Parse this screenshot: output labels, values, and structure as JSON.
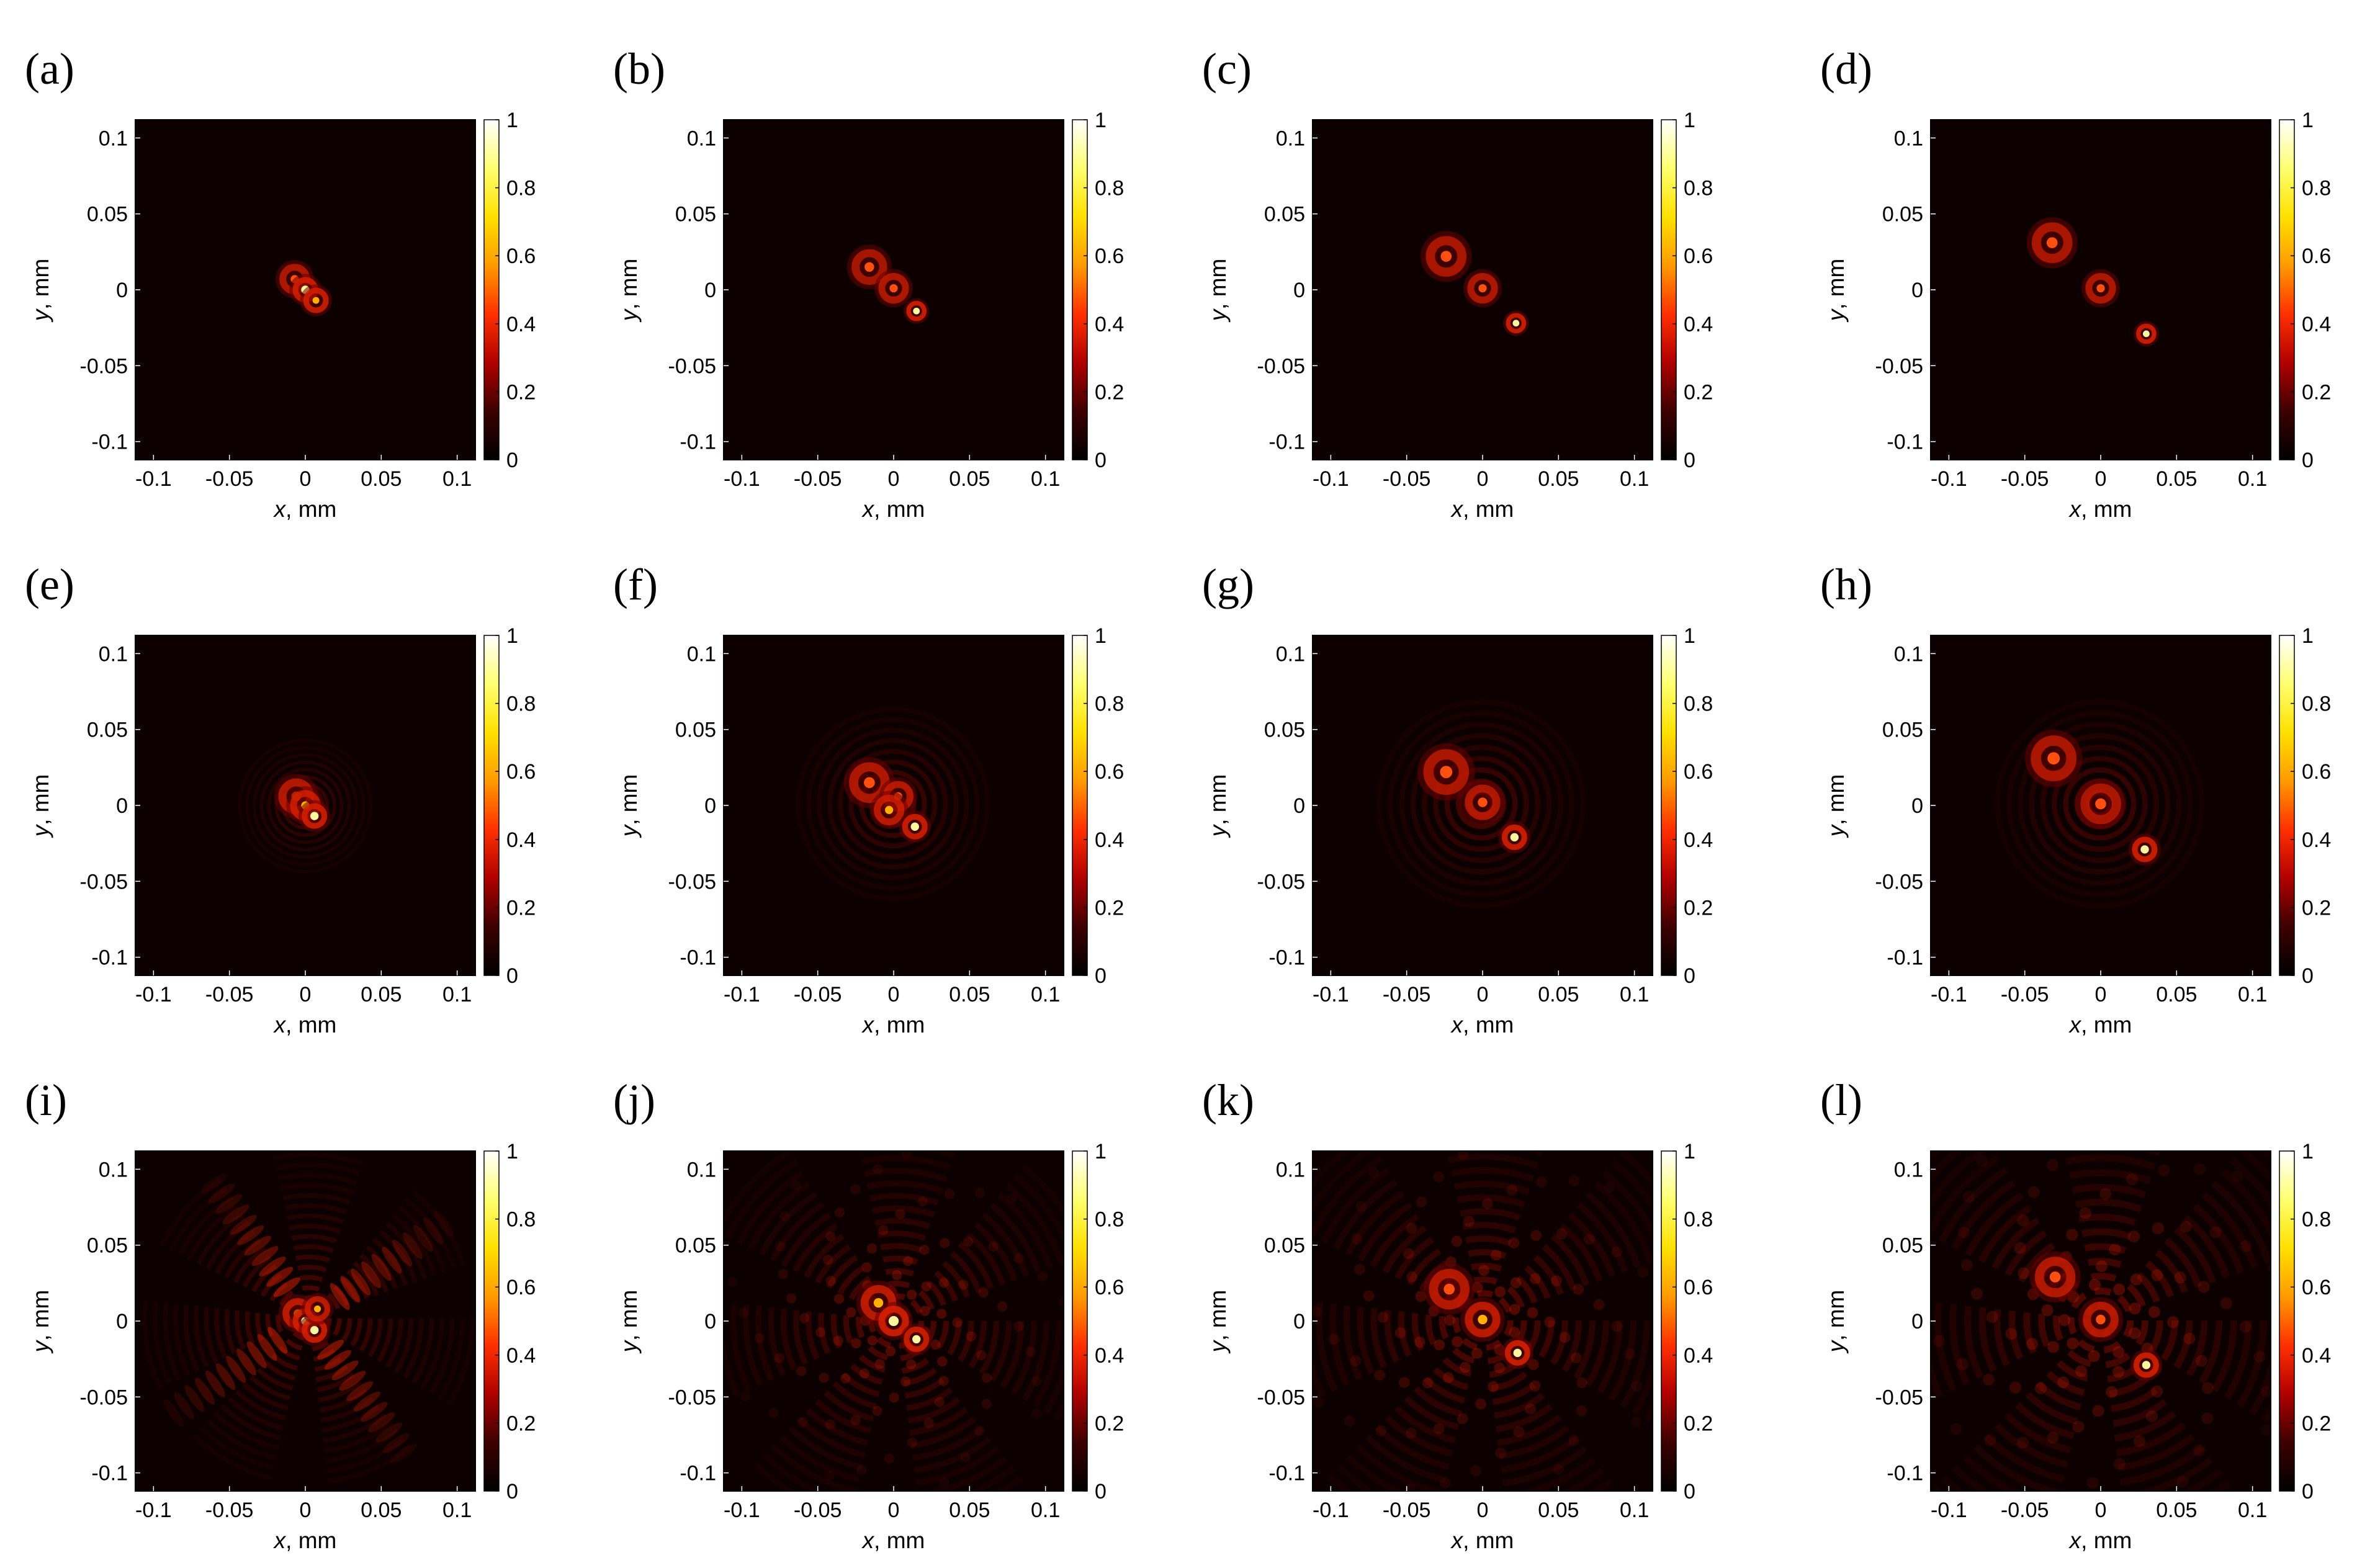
{
  "colors": {
    "background": "#ffffff",
    "plot_background": "#0c0000",
    "colormap": [
      "#000000",
      "#3d0000",
      "#b00000",
      "#ff3000",
      "#ff9a00",
      "#ffe000",
      "#ffff70",
      "#ffffff"
    ]
  },
  "chart_data": [
    {
      "type": "heatmap",
      "panel_label": "(a)",
      "xlabel": "x, mm",
      "ylabel": "y, mm",
      "xlim": [
        -0.112,
        0.112
      ],
      "ylim": [
        -0.112,
        0.112
      ],
      "xticks": [
        "-0.1",
        "-0.05",
        "0",
        "0.05",
        "0.1"
      ],
      "yticks": [
        "0.1",
        "0.05",
        "0",
        "-0.05",
        "-0.1"
      ],
      "colorbar_ticks": [
        "1",
        "0.8",
        "0.6",
        "0.4",
        "0.2",
        "0"
      ],
      "spots": [
        {
          "x": -0.007,
          "y": 0.007,
          "intensity": 0.55,
          "ring": 0.006
        },
        {
          "x": 0.0,
          "y": 0.0,
          "intensity": 0.9,
          "ring": 0.005
        },
        {
          "x": 0.007,
          "y": -0.007,
          "intensity": 0.85,
          "ring": 0.005
        }
      ],
      "spread": 0,
      "interference": "none"
    },
    {
      "type": "heatmap",
      "panel_label": "(b)",
      "xlabel": "x, mm",
      "ylabel": "y, mm",
      "xlim": [
        -0.112,
        0.112
      ],
      "ylim": [
        -0.112,
        0.112
      ],
      "xticks": [
        "-0.1",
        "-0.05",
        "0",
        "0.05",
        "0.1"
      ],
      "yticks": [
        "0.1",
        "0.05",
        "0",
        "-0.05",
        "-0.1"
      ],
      "colorbar_ticks": [
        "1",
        "0.8",
        "0.6",
        "0.4",
        "0.2",
        "0"
      ],
      "spots": [
        {
          "x": -0.016,
          "y": 0.015,
          "intensity": 0.45,
          "ring": 0.007
        },
        {
          "x": 0.0,
          "y": 0.001,
          "intensity": 0.55,
          "ring": 0.006
        },
        {
          "x": 0.015,
          "y": -0.014,
          "intensity": 0.95,
          "ring": 0.004
        }
      ],
      "spread": 0,
      "interference": "none"
    },
    {
      "type": "heatmap",
      "panel_label": "(c)",
      "xlabel": "x, mm",
      "ylabel": "y, mm",
      "xlim": [
        -0.112,
        0.112
      ],
      "ylim": [
        -0.112,
        0.112
      ],
      "xticks": [
        "-0.1",
        "-0.05",
        "0",
        "0.05",
        "0.1"
      ],
      "yticks": [
        "0.1",
        "0.05",
        "0",
        "-0.05",
        "-0.1"
      ],
      "colorbar_ticks": [
        "1",
        "0.8",
        "0.6",
        "0.4",
        "0.2",
        "0"
      ],
      "spots": [
        {
          "x": -0.024,
          "y": 0.022,
          "intensity": 0.5,
          "ring": 0.008
        },
        {
          "x": 0.0,
          "y": 0.001,
          "intensity": 0.55,
          "ring": 0.006
        },
        {
          "x": 0.022,
          "y": -0.022,
          "intensity": 0.95,
          "ring": 0.004
        }
      ],
      "spread": 0,
      "interference": "none"
    },
    {
      "type": "heatmap",
      "panel_label": "(d)",
      "xlabel": "x, mm",
      "ylabel": "y, mm",
      "xlim": [
        -0.112,
        0.112
      ],
      "ylim": [
        -0.112,
        0.112
      ],
      "xticks": [
        "-0.1",
        "-0.05",
        "0",
        "0.05",
        "0.1"
      ],
      "yticks": [
        "0.1",
        "0.05",
        "0",
        "-0.05",
        "-0.1"
      ],
      "colorbar_ticks": [
        "1",
        "0.8",
        "0.6",
        "0.4",
        "0.2",
        "0"
      ],
      "spots": [
        {
          "x": -0.032,
          "y": 0.031,
          "intensity": 0.5,
          "ring": 0.008
        },
        {
          "x": 0.0,
          "y": 0.001,
          "intensity": 0.55,
          "ring": 0.006
        },
        {
          "x": 0.03,
          "y": -0.029,
          "intensity": 0.95,
          "ring": 0.004
        }
      ],
      "spread": 0,
      "interference": "none"
    },
    {
      "type": "heatmap",
      "panel_label": "(e)",
      "xlabel": "x, mm",
      "ylabel": "y, mm",
      "xlim": [
        -0.112,
        0.112
      ],
      "ylim": [
        -0.112,
        0.112
      ],
      "xticks": [
        "-0.1",
        "-0.05",
        "0",
        "0.05",
        "0.1"
      ],
      "yticks": [
        "0.1",
        "0.05",
        "0",
        "-0.05",
        "-0.1"
      ],
      "colorbar_ticks": [
        "1",
        "0.8",
        "0.6",
        "0.4",
        "0.2",
        "0"
      ],
      "spots": [
        {
          "x": -0.006,
          "y": 0.006,
          "intensity": 0.6,
          "ring": 0.007
        },
        {
          "x": 0.0,
          "y": 0.0,
          "intensity": 0.8,
          "ring": 0.006
        },
        {
          "x": 0.006,
          "y": -0.007,
          "intensity": 0.9,
          "ring": 0.005
        }
      ],
      "spread": 0.018,
      "interference": "rings"
    },
    {
      "type": "heatmap",
      "panel_label": "(f)",
      "xlabel": "x, mm",
      "ylabel": "y, mm",
      "xlim": [
        -0.112,
        0.112
      ],
      "ylim": [
        -0.112,
        0.112
      ],
      "xticks": [
        "-0.1",
        "-0.05",
        "0",
        "0.05",
        "0.1"
      ],
      "yticks": [
        "0.1",
        "0.05",
        "0",
        "-0.05",
        "-0.1"
      ],
      "colorbar_ticks": [
        "1",
        "0.8",
        "0.6",
        "0.4",
        "0.2",
        "0"
      ],
      "spots": [
        {
          "x": -0.016,
          "y": 0.015,
          "intensity": 0.55,
          "ring": 0.008
        },
        {
          "x": 0.003,
          "y": 0.006,
          "intensity": 0.6,
          "ring": 0.006
        },
        {
          "x": -0.003,
          "y": -0.003,
          "intensity": 0.7,
          "ring": 0.006
        },
        {
          "x": 0.014,
          "y": -0.014,
          "intensity": 0.9,
          "ring": 0.005
        }
      ],
      "spread": 0.026,
      "interference": "rings"
    },
    {
      "type": "heatmap",
      "panel_label": "(g)",
      "xlabel": "x, mm",
      "ylabel": "y, mm",
      "xlim": [
        -0.112,
        0.112
      ],
      "ylim": [
        -0.112,
        0.112
      ],
      "xticks": [
        "-0.1",
        "-0.05",
        "0",
        "0.05",
        "0.1"
      ],
      "yticks": [
        "0.1",
        "0.05",
        "0",
        "-0.05",
        "-0.1"
      ],
      "colorbar_ticks": [
        "1",
        "0.8",
        "0.6",
        "0.4",
        "0.2",
        "0"
      ],
      "spots": [
        {
          "x": -0.024,
          "y": 0.022,
          "intensity": 0.5,
          "ring": 0.009
        },
        {
          "x": 0.0,
          "y": 0.002,
          "intensity": 0.55,
          "ring": 0.007
        },
        {
          "x": 0.021,
          "y": -0.021,
          "intensity": 0.95,
          "ring": 0.005
        }
      ],
      "spread": 0.028,
      "interference": "rings"
    },
    {
      "type": "heatmap",
      "panel_label": "(h)",
      "xlabel": "x, mm",
      "ylabel": "y, mm",
      "xlim": [
        -0.112,
        0.112
      ],
      "ylim": [
        -0.112,
        0.112
      ],
      "xticks": [
        "-0.1",
        "-0.05",
        "0",
        "0.05",
        "0.1"
      ],
      "yticks": [
        "0.1",
        "0.05",
        "0",
        "-0.05",
        "-0.1"
      ],
      "colorbar_ticks": [
        "1",
        "0.8",
        "0.6",
        "0.4",
        "0.2",
        "0"
      ],
      "spots": [
        {
          "x": -0.031,
          "y": 0.031,
          "intensity": 0.5,
          "ring": 0.009
        },
        {
          "x": 0.0,
          "y": 0.001,
          "intensity": 0.5,
          "ring": 0.008
        },
        {
          "x": 0.029,
          "y": -0.029,
          "intensity": 0.95,
          "ring": 0.005
        }
      ],
      "spread": 0.028,
      "interference": "rings"
    },
    {
      "type": "heatmap",
      "panel_label": "(i)",
      "xlabel": "x, mm",
      "ylabel": "y, mm",
      "xlim": [
        -0.112,
        0.112
      ],
      "ylim": [
        -0.112,
        0.112
      ],
      "xticks": [
        "-0.1",
        "-0.05",
        "0",
        "0.05",
        "0.1"
      ],
      "yticks": [
        "0.1",
        "0.05",
        "0",
        "-0.05",
        "-0.1"
      ],
      "colorbar_ticks": [
        "1",
        "0.8",
        "0.6",
        "0.4",
        "0.2",
        "0"
      ],
      "spots": [
        {
          "x": -0.005,
          "y": 0.005,
          "intensity": 0.75,
          "ring": 0.006
        },
        {
          "x": 0.0,
          "y": 0.0,
          "intensity": 0.95,
          "ring": 0.005
        },
        {
          "x": 0.006,
          "y": -0.006,
          "intensity": 0.9,
          "ring": 0.005
        },
        {
          "x": 0.008,
          "y": 0.008,
          "intensity": 0.7,
          "ring": 0.005
        }
      ],
      "spread": 0.045,
      "interference": "cross"
    },
    {
      "type": "heatmap",
      "panel_label": "(j)",
      "xlabel": "x, mm",
      "ylabel": "y, mm",
      "xlim": [
        -0.112,
        0.112
      ],
      "ylim": [
        -0.112,
        0.112
      ],
      "xticks": [
        "-0.1",
        "-0.05",
        "0",
        "0.05",
        "0.1"
      ],
      "yticks": [
        "0.1",
        "0.05",
        "0",
        "-0.05",
        "-0.1"
      ],
      "colorbar_ticks": [
        "1",
        "0.8",
        "0.6",
        "0.4",
        "0.2",
        "0"
      ],
      "spots": [
        {
          "x": -0.01,
          "y": 0.012,
          "intensity": 0.75,
          "ring": 0.007
        },
        {
          "x": 0.0,
          "y": 0.0,
          "intensity": 0.95,
          "ring": 0.006
        },
        {
          "x": 0.015,
          "y": -0.012,
          "intensity": 0.9,
          "ring": 0.005
        }
      ],
      "spread": 0.055,
      "interference": "spiral"
    },
    {
      "type": "heatmap",
      "panel_label": "(k)",
      "xlabel": "x, mm",
      "ylabel": "y, mm",
      "xlim": [
        -0.112,
        0.112
      ],
      "ylim": [
        -0.112,
        0.112
      ],
      "xticks": [
        "-0.1",
        "-0.05",
        "0",
        "0.05",
        "0.1"
      ],
      "yticks": [
        "0.1",
        "0.05",
        "0",
        "-0.05",
        "-0.1"
      ],
      "colorbar_ticks": [
        "1",
        "0.8",
        "0.6",
        "0.4",
        "0.2",
        "0"
      ],
      "spots": [
        {
          "x": -0.022,
          "y": 0.021,
          "intensity": 0.65,
          "ring": 0.008
        },
        {
          "x": 0.0,
          "y": 0.001,
          "intensity": 0.7,
          "ring": 0.007
        },
        {
          "x": 0.023,
          "y": -0.021,
          "intensity": 0.95,
          "ring": 0.005
        }
      ],
      "spread": 0.06,
      "interference": "spiral"
    },
    {
      "type": "heatmap",
      "panel_label": "(l)",
      "xlabel": "x, mm",
      "ylabel": "y, mm",
      "xlim": [
        -0.112,
        0.112
      ],
      "ylim": [
        -0.112,
        0.112
      ],
      "xticks": [
        "-0.1",
        "-0.05",
        "0",
        "0.05",
        "0.1"
      ],
      "yticks": [
        "0.1",
        "0.05",
        "0",
        "-0.05",
        "-0.1"
      ],
      "colorbar_ticks": [
        "1",
        "0.8",
        "0.6",
        "0.4",
        "0.2",
        "0"
      ],
      "spots": [
        {
          "x": -0.03,
          "y": 0.029,
          "intensity": 0.6,
          "ring": 0.008
        },
        {
          "x": 0.0,
          "y": 0.001,
          "intensity": 0.6,
          "ring": 0.007
        },
        {
          "x": 0.03,
          "y": -0.029,
          "intensity": 0.95,
          "ring": 0.005
        }
      ],
      "spread": 0.065,
      "interference": "spiral"
    }
  ]
}
